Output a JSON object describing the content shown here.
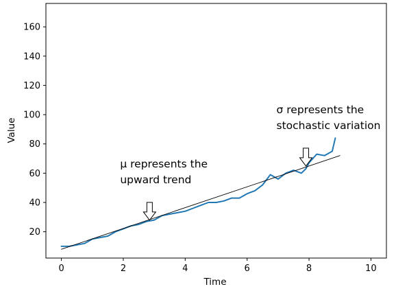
{
  "chart_data": {
    "type": "line",
    "xlabel": "Time",
    "ylabel": "Value",
    "xlim": [
      -0.5,
      10.5
    ],
    "ylim": [
      2,
      176
    ],
    "x_ticks": [
      0,
      2,
      4,
      6,
      8,
      10
    ],
    "y_ticks": [
      20,
      40,
      60,
      80,
      100,
      120,
      140,
      160
    ],
    "grid": false,
    "series": [
      {
        "style": "line",
        "color": "#1f77b4",
        "x": [
          0,
          0.25,
          0.5,
          0.75,
          1.0,
          1.25,
          1.5,
          1.75,
          2.0,
          2.25,
          2.5,
          2.75,
          3.0,
          3.25,
          3.5,
          3.75,
          4.0,
          4.25,
          4.5,
          4.75,
          5.0,
          5.25,
          5.5,
          5.75,
          6.0,
          6.25,
          6.5,
          6.75,
          7.0,
          7.25,
          7.5,
          7.75,
          7.9,
          8.0,
          8.25,
          8.5,
          8.75,
          8.85
        ],
        "y": [
          10,
          10,
          11,
          12,
          15,
          16,
          17,
          20,
          22,
          24,
          25,
          27,
          28,
          31,
          32,
          33,
          34,
          36,
          38,
          40,
          40,
          41,
          43,
          43,
          46,
          48,
          52,
          59,
          56,
          60,
          62,
          60,
          63,
          67,
          73,
          72,
          75,
          84
        ]
      },
      {
        "style": "trend-line",
        "color": "#000000",
        "x": [
          0,
          9
        ],
        "y": [
          8,
          72
        ]
      }
    ],
    "annotations": [
      {
        "lines": [
          "μ represents the",
          "upward trend"
        ],
        "arrow_at": [
          2.85,
          26
        ]
      },
      {
        "lines": [
          "σ represents the",
          "stochastic variation"
        ],
        "arrow_at": [
          7.9,
          63
        ]
      }
    ]
  }
}
